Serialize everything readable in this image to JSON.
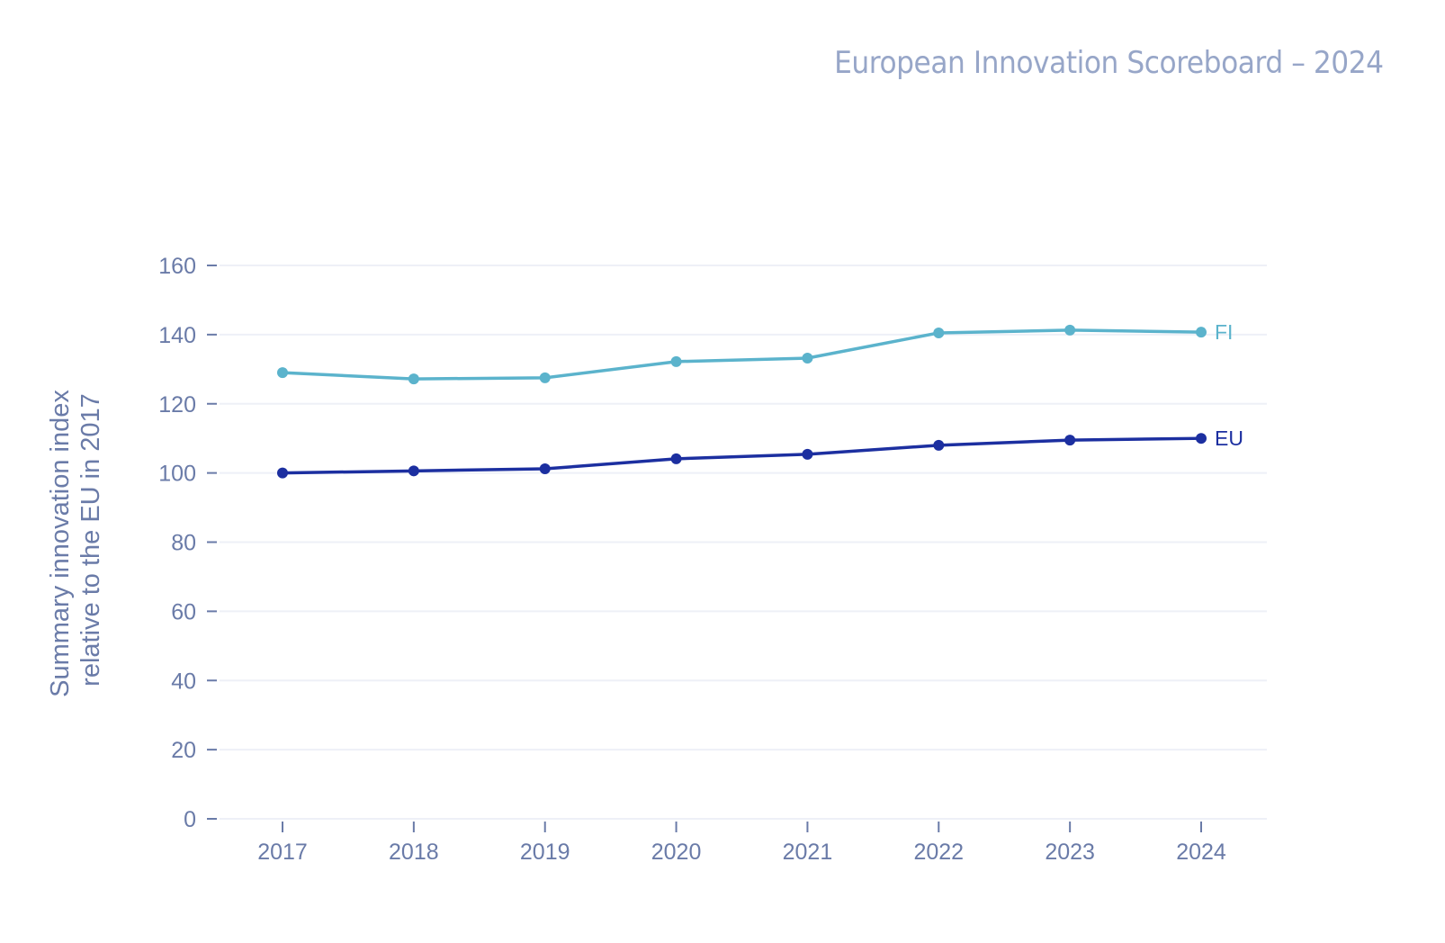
{
  "header": {
    "title": "European Innovation Scoreboard – 2024"
  },
  "chart_data": {
    "type": "line",
    "title": "European Innovation Scoreboard – 2024",
    "xlabel": "",
    "ylabel_lines": [
      "Summary innovation index",
      "relative to the EU in 2017"
    ],
    "ylabel": "Summary innovation index relative to the EU in 2017",
    "x": [
      "2017",
      "2018",
      "2019",
      "2020",
      "2021",
      "2022",
      "2023",
      "2024"
    ],
    "ylim": [
      0,
      160
    ],
    "yticks": [
      0,
      20,
      40,
      60,
      80,
      100,
      120,
      140,
      160
    ],
    "grid": true,
    "legend": "inline-right",
    "series": [
      {
        "name": "FI",
        "color": "#5bb3cc",
        "values": [
          129.0,
          127.2,
          127.5,
          132.2,
          133.2,
          140.5,
          141.3,
          140.7
        ]
      },
      {
        "name": "EU",
        "color": "#1c2fa0",
        "values": [
          100.0,
          100.6,
          101.2,
          104.1,
          105.4,
          108.0,
          109.5,
          110.0
        ]
      }
    ],
    "colors": {
      "tick_text": "#6a7ba8",
      "grid": "#eef0f7",
      "title": "#97a6c8"
    }
  }
}
